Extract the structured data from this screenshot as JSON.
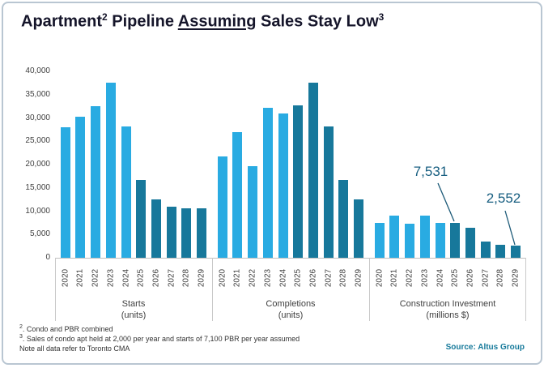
{
  "title": {
    "part1": "Apartment",
    "sup1": "2",
    "part2": " Pipeline ",
    "underlined": "Assuming",
    "part3": " Sales Stay Low",
    "sup2": "3"
  },
  "colors": {
    "bar_actual": "#29abe2",
    "bar_forecast": "#17789b",
    "annotation_text": "#175e80",
    "leader_line": "#1c5a78",
    "source_text": "#177a9b",
    "title_text": "#15152a"
  },
  "y_axis": {
    "labels": [
      "40,000",
      "35,000",
      "30,000",
      "25,000",
      "20,000",
      "15,000",
      "10,000",
      "5,000",
      "0"
    ]
  },
  "chart_data": {
    "type": "bar",
    "title": "Apartment Pipeline Assuming Sales Stay Low",
    "xlabel": "",
    "ylabel": "",
    "ylim": [
      0,
      40000
    ],
    "grid": false,
    "legend": "none (light blue = 2020-2024 actual, dark teal = 2025-2029 forecast)",
    "categories": [
      "2020",
      "2021",
      "2022",
      "2023",
      "2024",
      "2025",
      "2026",
      "2027",
      "2028",
      "2029"
    ],
    "groups": [
      {
        "id": "starts",
        "label_line1": "Starts",
        "label_line2": "(units)",
        "actual_count": 5,
        "values": [
          28000,
          30200,
          32600,
          37600,
          28100,
          16700,
          12500,
          11000,
          10700,
          10700
        ]
      },
      {
        "id": "completions",
        "label_line1": "Completions",
        "label_line2": "(units)",
        "actual_count": 5,
        "values": [
          21700,
          26900,
          19700,
          32100,
          31000,
          32700,
          37500,
          28200,
          16700,
          12500
        ]
      },
      {
        "id": "investment",
        "label_line1": "Construction Investment",
        "label_line2": "(millions $)",
        "actual_count": 5,
        "values": [
          7450,
          9100,
          7250,
          9100,
          7450,
          7531,
          6500,
          3400,
          2800,
          2552
        ]
      }
    ],
    "annotations": [
      {
        "text": "7,531",
        "group": "investment",
        "category": "2025",
        "value": 7531
      },
      {
        "text": "2,552",
        "group": "investment",
        "category": "2029",
        "value": 2552
      }
    ]
  },
  "footnotes": [
    {
      "sup": "2",
      "text": ". Condo and PBR combined"
    },
    {
      "sup": "3",
      "text": ". Sales of condo apt held at 2,000 per year and starts of 7,100 PBR per year assumed"
    },
    {
      "sup": "",
      "text": "Note all data refer to Toronto CMA"
    }
  ],
  "source": "Source: Altus Group"
}
